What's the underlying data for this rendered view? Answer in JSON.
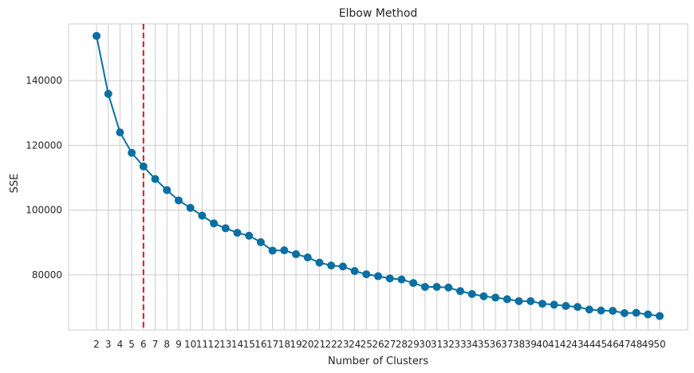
{
  "chart_data": {
    "type": "line",
    "title": "Elbow Method",
    "xlabel": "Number of Clusters",
    "ylabel": "SSE",
    "x": [
      2,
      3,
      4,
      5,
      6,
      7,
      8,
      9,
      10,
      11,
      12,
      13,
      14,
      15,
      16,
      17,
      18,
      19,
      20,
      21,
      22,
      23,
      24,
      25,
      26,
      27,
      28,
      29,
      30,
      31,
      32,
      33,
      34,
      35,
      36,
      37,
      38,
      39,
      40,
      41,
      42,
      43,
      44,
      45,
      46,
      47,
      48,
      49,
      50
    ],
    "series": [
      {
        "values": [
          153800,
          135900,
          124000,
          117700,
          113500,
          109600,
          106200,
          103000,
          100700,
          98300,
          95900,
          94400,
          93000,
          92100,
          90100,
          87500,
          87600,
          86400,
          85400,
          83800,
          82900,
          82600,
          81200,
          80200,
          79600,
          78900,
          78600,
          77500,
          76300,
          76300,
          76100,
          75000,
          74100,
          73400,
          73000,
          72500,
          71900,
          71900,
          71100,
          70800,
          70400,
          70100,
          69300,
          69000,
          68900,
          68200,
          68300,
          67800,
          67300
        ],
        "color": "#0a6fa3"
      }
    ],
    "elbow_x": 6,
    "elbow_color": "#e3121a",
    "ylim": [
      63000,
      157500
    ],
    "yticks": [
      80000,
      100000,
      120000,
      140000
    ],
    "grid": true
  }
}
